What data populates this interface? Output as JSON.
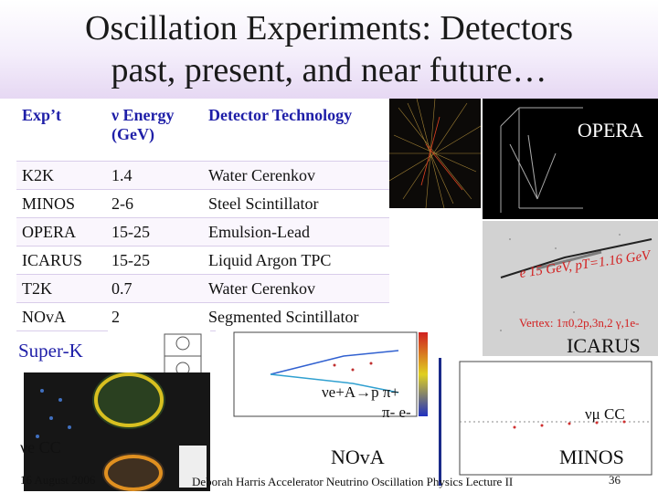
{
  "slide": {
    "title_line1": "Oscillation Experiments: Detectors",
    "title_line2": "past, present, and near future…"
  },
  "table": {
    "headers": [
      "Exp’t",
      "ν Energy (GeV)",
      "Detector Technology"
    ],
    "rows": [
      [
        "K2K",
        "1.4",
        "Water Cerenkov"
      ],
      [
        "MINOS",
        "2-6",
        "Steel Scintillator"
      ],
      [
        "OPERA",
        "15-25",
        "Emulsion-Lead"
      ],
      [
        "ICARUS",
        "15-25",
        "Liquid Argon TPC"
      ],
      [
        "T2K",
        "0.7",
        "Water Cerenkov"
      ],
      [
        "NOvA",
        "2",
        "Segmented Scintillator"
      ]
    ]
  },
  "images": {
    "opera_label": "OPERA",
    "icarus_label": "ICARUS",
    "icarus_event_text": "e 15 GeV, pT=1.16 GeV",
    "icarus_vertex_text": "Vertex: 1π0,2p,3n,2 γ,1e-",
    "superk_label": "Super-K",
    "nue_cc_label": "νe CC",
    "nova_reaction_line1": "νe+A→p π+",
    "nova_reaction_line2": "π- e-",
    "nova_label": "NOvA",
    "numu_cc_label": "νμ CC",
    "minos_label": "MINOS"
  },
  "footer": {
    "date": "16 August 2006",
    "center": "Deborah Harris Accelerator Neutrino Oscillation Physics Lecture II",
    "page": "36"
  },
  "colors": {
    "header_text": "#1f1fa8",
    "title_band": "#e6d8f3"
  }
}
